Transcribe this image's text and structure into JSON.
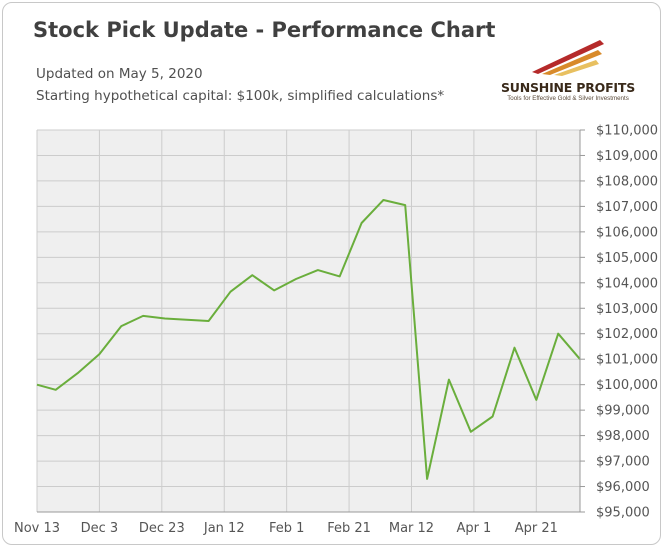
{
  "header": {
    "title": "Stock Pick Update - Performance Chart",
    "subtitle_date": "Updated on May 5, 2020",
    "subtitle_note": "Starting hypothetical capital: $100k, simplified calculations*"
  },
  "logo": {
    "name": "SUNSHINE PROFITS",
    "tagline": "Tools for Effective Gold & Silver Investments",
    "icon": "sunshine-profits-logo-icon"
  },
  "colors": {
    "line": "#6aae3c",
    "plot_background": "#efefef",
    "grid": "#cccccc",
    "text": "#555555"
  },
  "chart_data": {
    "type": "line",
    "title": "Stock Pick Update - Performance Chart",
    "xlabel": "",
    "ylabel": "",
    "x_ticks": [
      "Nov 13",
      "Dec 3",
      "Dec 23",
      "Jan 12",
      "Feb 1",
      "Feb 21",
      "Mar 12",
      "Apr 1",
      "Apr 21"
    ],
    "y_ticks": [
      "$95,000",
      "$96,000",
      "$97,000",
      "$98,000",
      "$99,000",
      "$100,000",
      "$101,000",
      "$102,000",
      "$103,000",
      "$104,000",
      "$105,000",
      "$106,000",
      "$107,000",
      "$108,000",
      "$109,000",
      "$110,000"
    ],
    "ylim": [
      95000,
      110000
    ],
    "xlim": [
      "2019-11-13",
      "2020-05-05"
    ],
    "grid": true,
    "y_axis_side": "right",
    "series": [
      {
        "values": [
          {
            "x": "2019-11-13",
            "y": 100000
          },
          {
            "x": "2019-11-19",
            "y": 99800
          },
          {
            "x": "2019-11-26",
            "y": 100450
          },
          {
            "x": "2019-12-03",
            "y": 101200
          },
          {
            "x": "2019-12-10",
            "y": 102300
          },
          {
            "x": "2019-12-17",
            "y": 102700
          },
          {
            "x": "2019-12-24",
            "y": 102600
          },
          {
            "x": "2020-01-07",
            "y": 102500
          },
          {
            "x": "2020-01-14",
            "y": 103650
          },
          {
            "x": "2020-01-21",
            "y": 104300
          },
          {
            "x": "2020-01-28",
            "y": 103700
          },
          {
            "x": "2020-02-04",
            "y": 104150
          },
          {
            "x": "2020-02-11",
            "y": 104500
          },
          {
            "x": "2020-02-18",
            "y": 104250
          },
          {
            "x": "2020-02-25",
            "y": 106350
          },
          {
            "x": "2020-03-03",
            "y": 107250
          },
          {
            "x": "2020-03-10",
            "y": 107050
          },
          {
            "x": "2020-03-17",
            "y": 96300
          },
          {
            "x": "2020-03-24",
            "y": 100200
          },
          {
            "x": "2020-03-31",
            "y": 98150
          },
          {
            "x": "2020-04-07",
            "y": 98750
          },
          {
            "x": "2020-04-14",
            "y": 101450
          },
          {
            "x": "2020-04-21",
            "y": 99400
          },
          {
            "x": "2020-04-28",
            "y": 102000
          },
          {
            "x": "2020-05-05",
            "y": 101000
          }
        ]
      }
    ]
  }
}
